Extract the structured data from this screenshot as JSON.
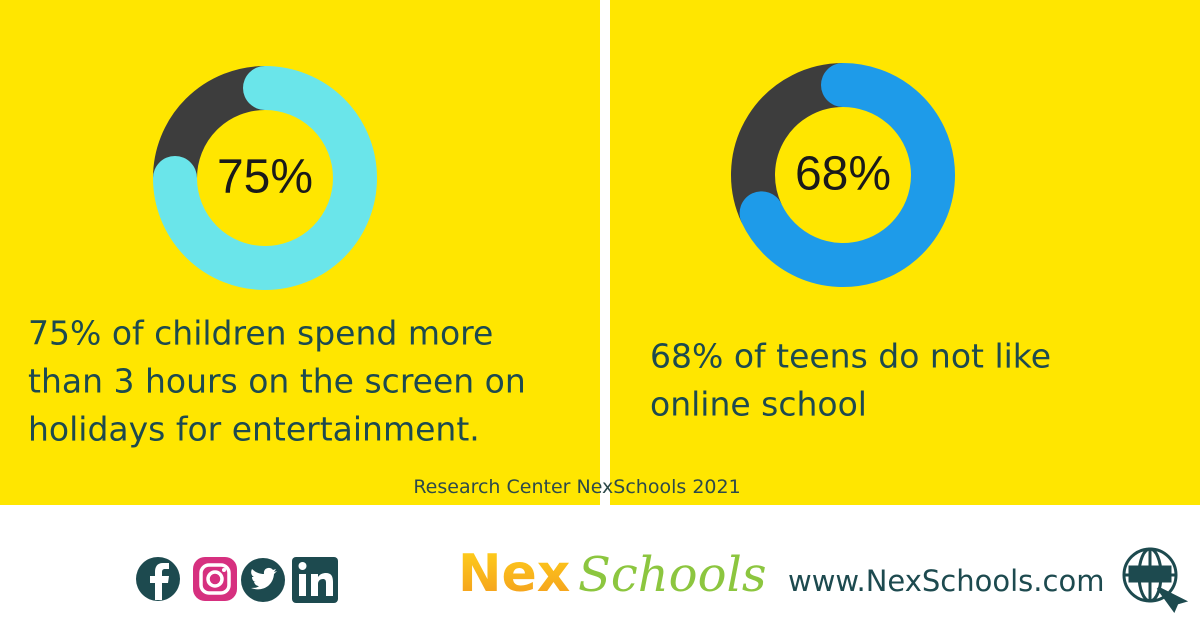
{
  "chart_data": [
    {
      "type": "donut",
      "values": [
        75,
        25
      ],
      "value_labels": [
        "75%",
        null
      ],
      "colors": [
        "#6ae5ea",
        "#3d3d3d"
      ],
      "caption": [
        "75% of children spend more",
        "than 3 hours on the screen on",
        "holidays for entertainment."
      ]
    },
    {
      "type": "donut",
      "values": [
        68,
        32
      ],
      "value_labels": [
        "68%",
        null
      ],
      "colors": [
        "#1e9be9",
        "#3d3d3d"
      ],
      "caption": [
        "68% of teens do not like",
        "online school"
      ]
    }
  ],
  "source": "Research Center NexSchools 2021",
  "footer": {
    "logo_part1": "Nex",
    "logo_part2": "Schools",
    "url": "www.NexSchools.com"
  }
}
